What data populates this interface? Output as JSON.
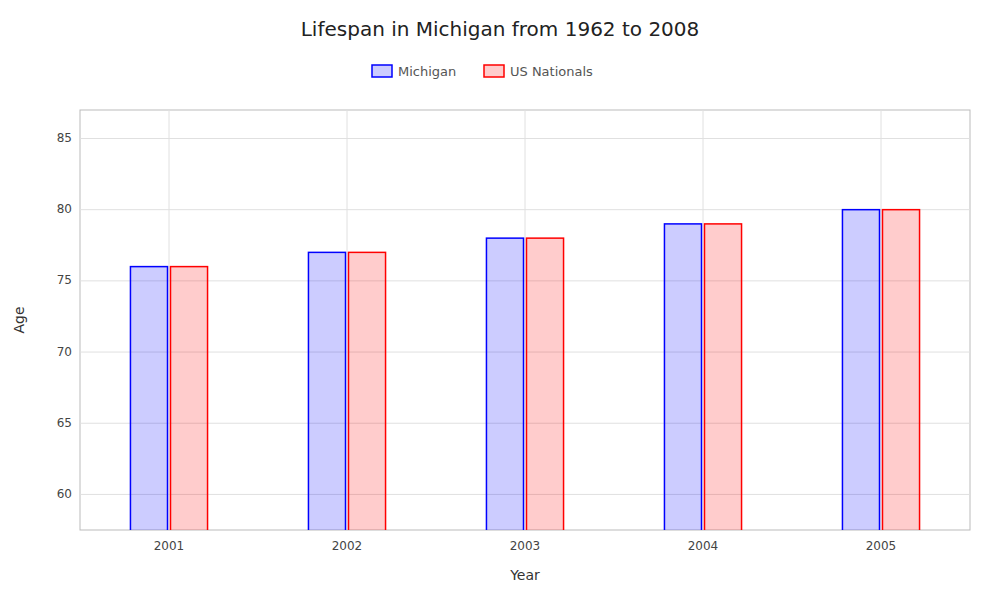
{
  "chart_data": {
    "type": "bar",
    "title": "Lifespan in Michigan from 1962 to 2008",
    "xlabel": "Year",
    "ylabel": "Age",
    "categories": [
      "2001",
      "2002",
      "2003",
      "2004",
      "2005"
    ],
    "series": [
      {
        "name": "Michigan",
        "color": "#0000ff",
        "values": [
          76,
          77,
          78,
          79,
          80
        ]
      },
      {
        "name": "US Nationals",
        "color": "#ff0000",
        "values": [
          76,
          77,
          78,
          79,
          80
        ]
      }
    ],
    "ylim": [
      57.5,
      87
    ],
    "yticks": [
      60,
      65,
      70,
      75,
      80,
      85
    ],
    "grid": true,
    "legend": "top"
  }
}
